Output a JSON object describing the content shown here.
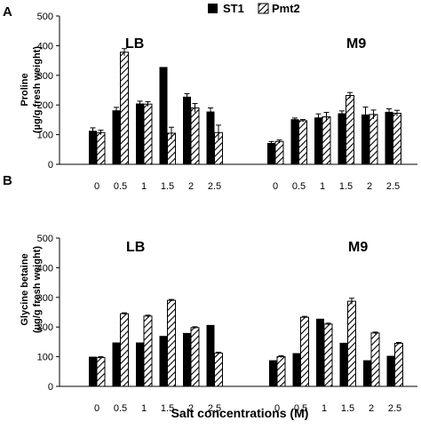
{
  "legend": [
    {
      "name": "ST1",
      "style": "solid"
    },
    {
      "name": "Pmt2",
      "style": "hatched"
    }
  ],
  "xlabel": "Salt concentrations (M)",
  "colors": {
    "solid": "#000000",
    "hatch": "#000000",
    "background": "#ffffff"
  },
  "chart_data": [
    {
      "type": "bar",
      "panel": "A",
      "ylabel": [
        "Proline",
        "(µg/g fresh weight)"
      ],
      "ylim": [
        0,
        500
      ],
      "yticks": [
        0,
        100,
        200,
        300,
        400,
        500
      ],
      "groups": [
        {
          "name": "LB",
          "categories": [
            "0",
            "0.5",
            "1",
            "1.5",
            "2",
            "2.5"
          ],
          "series": [
            {
              "name": "ST1",
              "values": [
                113,
                182,
                205,
                328,
                228,
                178
              ],
              "errors": [
                10,
                10,
                8,
                0,
                10,
                12
              ]
            },
            {
              "name": "Pmt2",
              "values": [
                107,
                378,
                203,
                105,
                190,
                107
              ],
              "errors": [
                8,
                12,
                8,
                20,
                15,
                25
              ]
            }
          ]
        },
        {
          "name": "M9",
          "categories": [
            "0",
            "0.5",
            "1",
            "1.5",
            "2",
            "2.5"
          ],
          "series": [
            {
              "name": "ST1",
              "values": [
                72,
                152,
                158,
                172,
                168,
                177
              ],
              "errors": [
                5,
                4,
                12,
                8,
                25,
                10
              ]
            },
            {
              "name": "Pmt2",
              "values": [
                77,
                147,
                160,
                232,
                168,
                172
              ],
              "errors": [
                5,
                4,
                15,
                10,
                15,
                10
              ]
            }
          ]
        }
      ]
    },
    {
      "type": "bar",
      "panel": "B",
      "ylabel": [
        "Glycine betaine",
        "(µg/g fresh weight)"
      ],
      "ylim": [
        0,
        500
      ],
      "yticks": [
        0,
        100,
        200,
        300,
        400,
        500
      ],
      "groups": [
        {
          "name": "LB",
          "categories": [
            "0",
            "0.5",
            "1",
            "1.5",
            "2",
            "2.5"
          ],
          "series": [
            {
              "name": "ST1",
              "values": [
                100,
                148,
                148,
                170,
                180,
                207
              ],
              "errors": [
                0,
                0,
                0,
                0,
                0,
                0
              ]
            },
            {
              "name": "Pmt2",
              "values": [
                97,
                245,
                237,
                290,
                198,
                112
              ],
              "errors": [
                3,
                3,
                3,
                3,
                3,
                3
              ]
            }
          ]
        },
        {
          "name": "M9",
          "categories": [
            "0",
            "0.5",
            "1",
            "1.5",
            "2",
            "2.5"
          ],
          "series": [
            {
              "name": "ST1",
              "values": [
                88,
                112,
                228,
                147,
                88,
                103
              ],
              "errors": [
                0,
                0,
                0,
                0,
                0,
                0
              ]
            },
            {
              "name": "Pmt2",
              "values": [
                100,
                233,
                210,
                287,
                180,
                145
              ],
              "errors": [
                3,
                3,
                3,
                10,
                3,
                3
              ]
            }
          ]
        }
      ]
    }
  ]
}
